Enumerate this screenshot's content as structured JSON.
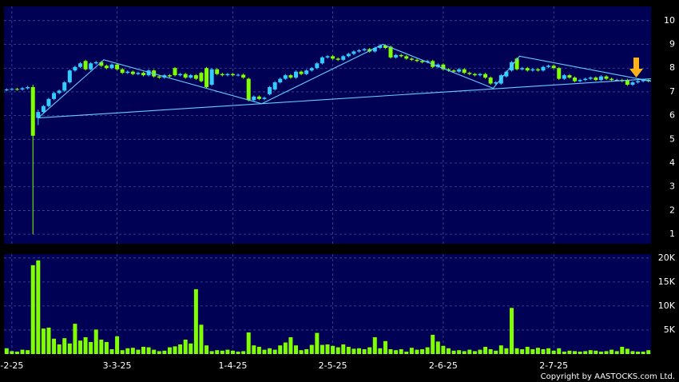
{
  "chart_data": [
    {
      "type": "candlestick",
      "categories": [
        null,
        "-2-25",
        null,
        null,
        null,
        null,
        null,
        null,
        null,
        null,
        null,
        null,
        null,
        null,
        null,
        null,
        null,
        null,
        null,
        null,
        null,
        "3-3-25",
        null,
        null,
        null,
        null,
        null,
        null,
        null,
        null,
        null,
        null,
        null,
        null,
        null,
        null,
        null,
        null,
        null,
        null,
        null,
        null,
        null,
        "1-4-25",
        null,
        null,
        null,
        null,
        null,
        null,
        null,
        null,
        null,
        null,
        null,
        null,
        null,
        null,
        null,
        null,
        null,
        null,
        "2-5-25",
        null,
        null,
        null,
        null,
        null,
        null,
        null,
        null,
        null,
        null,
        null,
        null,
        null,
        null,
        null,
        null,
        null,
        null,
        null,
        null,
        "2-6-25",
        null,
        null,
        null,
        null,
        null,
        null,
        null,
        null,
        null,
        null,
        null,
        null,
        null,
        null,
        null,
        null,
        null,
        null,
        null,
        null,
        "2-7-25",
        null,
        null,
        null,
        null,
        null,
        null,
        null,
        null,
        null,
        null,
        null,
        null,
        null,
        null,
        null,
        null,
        null,
        null
      ],
      "open": [
        7.08,
        7.1,
        7.12,
        7.1,
        7.15,
        7.2,
        5.9,
        6.15,
        6.4,
        6.7,
        6.95,
        7.05,
        7.4,
        7.9,
        8.05,
        8.3,
        7.95,
        8.2,
        8.25,
        8.1,
        8.0,
        8.15,
        7.95,
        7.8,
        7.85,
        7.75,
        7.8,
        7.7,
        7.9,
        7.65,
        7.6,
        7.7,
        8.0,
        7.7,
        7.75,
        7.6,
        7.7,
        7.8,
        8.0,
        7.3,
        7.95,
        7.75,
        7.7,
        7.75,
        7.7,
        7.72,
        7.55,
        6.65,
        6.8,
        6.7,
        6.9,
        7.1,
        7.4,
        7.55,
        7.7,
        7.6,
        7.85,
        7.75,
        7.9,
        8.0,
        8.2,
        8.45,
        8.5,
        8.4,
        8.35,
        8.5,
        8.6,
        8.7,
        8.75,
        8.8,
        8.7,
        8.85,
        8.95,
        8.9,
        8.45,
        8.55,
        8.5,
        8.4,
        8.35,
        8.3,
        8.25,
        8.3,
        8.05,
        8.15,
        7.95,
        7.9,
        7.85,
        7.95,
        7.8,
        7.75,
        7.7,
        7.75,
        7.6,
        7.35,
        7.35,
        7.65,
        7.9,
        8.4,
        7.95,
        8.0,
        7.9,
        7.95,
        7.9,
        8.05,
        8.1,
        8.0,
        7.55,
        7.7,
        7.6,
        7.45,
        7.5,
        7.55,
        7.6,
        7.5,
        7.65,
        7.55,
        7.5,
        7.5,
        7.5,
        7.3,
        7.4,
        7.45,
        7.5
      ],
      "high": [
        7.15,
        7.17,
        7.17,
        7.2,
        7.25,
        7.3,
        6.25,
        6.45,
        6.75,
        7.0,
        7.1,
        7.45,
        7.95,
        8.1,
        8.25,
        8.35,
        8.25,
        8.3,
        8.3,
        8.15,
        8.2,
        8.2,
        8.0,
        7.9,
        7.9,
        7.85,
        7.85,
        7.95,
        7.95,
        7.7,
        7.75,
        7.75,
        8.05,
        7.8,
        7.8,
        7.75,
        7.75,
        7.85,
        8.05,
        8.0,
        8.0,
        7.8,
        7.8,
        7.8,
        7.77,
        7.77,
        7.6,
        6.85,
        6.85,
        6.8,
        7.25,
        7.45,
        7.6,
        7.75,
        7.75,
        7.9,
        7.9,
        7.95,
        8.05,
        8.25,
        8.5,
        8.55,
        8.55,
        8.45,
        8.55,
        8.65,
        8.75,
        8.8,
        8.85,
        8.85,
        8.9,
        9.0,
        9.0,
        8.95,
        8.6,
        8.6,
        8.55,
        8.45,
        8.4,
        8.35,
        8.35,
        8.35,
        8.2,
        8.2,
        8.0,
        7.95,
        8.0,
        8.0,
        7.85,
        7.8,
        7.8,
        7.8,
        7.65,
        7.45,
        7.75,
        7.9,
        8.3,
        8.45,
        8.05,
        8.05,
        8.0,
        8.0,
        8.1,
        8.15,
        8.15,
        8.05,
        7.75,
        7.75,
        7.65,
        7.55,
        7.6,
        7.65,
        7.65,
        7.7,
        7.7,
        7.6,
        7.55,
        7.55,
        7.55,
        7.45,
        7.5,
        7.55,
        7.55
      ],
      "low": [
        7.03,
        7.05,
        7.05,
        7.05,
        7.1,
        1.0,
        5.6,
        6.1,
        6.35,
        6.65,
        6.9,
        7.0,
        7.35,
        7.85,
        8.0,
        7.9,
        7.9,
        8.15,
        8.05,
        7.95,
        7.95,
        7.9,
        7.75,
        7.75,
        7.7,
        7.7,
        7.65,
        7.65,
        7.6,
        7.55,
        7.55,
        7.6,
        7.65,
        7.65,
        7.55,
        7.55,
        7.5,
        7.4,
        7.15,
        7.25,
        7.7,
        7.65,
        7.65,
        7.65,
        7.65,
        7.55,
        6.6,
        6.6,
        6.65,
        6.65,
        6.85,
        7.05,
        7.35,
        7.5,
        7.55,
        7.55,
        7.7,
        7.7,
        7.85,
        7.95,
        8.15,
        8.4,
        8.35,
        8.3,
        8.3,
        8.45,
        8.55,
        8.65,
        8.7,
        8.65,
        8.65,
        8.8,
        8.8,
        8.4,
        8.4,
        8.45,
        8.35,
        8.3,
        8.25,
        8.2,
        8.2,
        8.0,
        8.0,
        7.9,
        7.85,
        7.8,
        7.8,
        7.75,
        7.7,
        7.65,
        7.65,
        7.55,
        7.3,
        7.3,
        7.3,
        7.6,
        7.85,
        7.9,
        7.9,
        7.85,
        7.85,
        7.85,
        7.85,
        8.0,
        7.95,
        7.5,
        7.5,
        7.55,
        7.4,
        7.4,
        7.45,
        7.5,
        7.45,
        7.45,
        7.5,
        7.45,
        7.45,
        7.4,
        7.25,
        7.25,
        7.35,
        7.4,
        7.4
      ],
      "close": [
        7.1,
        7.12,
        7.1,
        7.15,
        7.2,
        5.15,
        6.15,
        6.4,
        6.7,
        6.95,
        7.05,
        7.4,
        7.9,
        8.05,
        8.2,
        7.95,
        8.2,
        8.25,
        8.1,
        8.0,
        8.15,
        7.95,
        7.8,
        7.85,
        7.75,
        7.8,
        7.7,
        7.9,
        7.65,
        7.6,
        7.7,
        7.65,
        7.7,
        7.75,
        7.6,
        7.7,
        7.55,
        7.45,
        7.2,
        7.95,
        7.75,
        7.7,
        7.75,
        7.7,
        7.72,
        7.6,
        6.65,
        6.8,
        6.7,
        6.75,
        7.2,
        7.4,
        7.55,
        7.7,
        7.6,
        7.85,
        7.75,
        7.9,
        8.0,
        8.2,
        8.45,
        8.5,
        8.4,
        8.35,
        8.5,
        8.6,
        8.7,
        8.75,
        8.8,
        8.7,
        8.85,
        8.95,
        8.85,
        8.45,
        8.55,
        8.5,
        8.4,
        8.35,
        8.3,
        8.25,
        8.3,
        8.05,
        8.15,
        7.95,
        7.9,
        7.85,
        7.95,
        7.8,
        7.75,
        7.7,
        7.75,
        7.6,
        7.35,
        7.4,
        7.7,
        7.85,
        8.25,
        7.95,
        8.0,
        7.9,
        7.95,
        7.9,
        8.05,
        8.1,
        8.0,
        7.55,
        7.7,
        7.6,
        7.45,
        7.5,
        7.55,
        7.6,
        7.5,
        7.65,
        7.55,
        7.5,
        7.5,
        7.45,
        7.3,
        7.4,
        7.45,
        7.5,
        7.45
      ],
      "up_color": "#33ccff",
      "down_color": "#80ff00",
      "ylim": [
        0.6,
        10.6
      ],
      "yticks": [
        1,
        2,
        3,
        4,
        5,
        6,
        7,
        8,
        9,
        10
      ],
      "grid": true,
      "trendlines": [
        {
          "color": "#66ccff",
          "x": [
            6,
            18.5,
            48.5,
            71.5,
            92.5,
            97.5,
            122.5
          ],
          "y": [
            5.9,
            8.35,
            6.5,
            9.0,
            7.15,
            8.5,
            7.45
          ]
        },
        {
          "color": "#66ccff",
          "x": [
            6,
            122.5
          ],
          "y": [
            5.9,
            7.55
          ]
        }
      ]
    },
    {
      "type": "bar",
      "values": [
        1200,
        600,
        500,
        900,
        800,
        18500,
        19500,
        5300,
        5500,
        3200,
        2000,
        3300,
        2200,
        6300,
        2800,
        3500,
        2500,
        5100,
        3000,
        2500,
        1000,
        3700,
        800,
        1200,
        1300,
        900,
        1500,
        1400,
        900,
        600,
        700,
        1400,
        1600,
        2000,
        3000,
        2200,
        13500,
        6100,
        1800,
        600,
        800,
        700,
        900,
        700,
        500,
        600,
        4500,
        1800,
        1500,
        900,
        1200,
        900,
        1800,
        2400,
        3500,
        1800,
        800,
        1000,
        1900,
        4400,
        1900,
        2000,
        1700,
        1400,
        2000,
        1500,
        1100,
        1200,
        1000,
        1400,
        3500,
        1200,
        2700,
        1000,
        800,
        1000,
        500,
        1300,
        900,
        1000,
        1400,
        4000,
        2600,
        1700,
        1200,
        700,
        800,
        600,
        900,
        600,
        900,
        1500,
        1000,
        700,
        1800,
        1200,
        9600,
        1200,
        1000,
        1500,
        1000,
        1300,
        1000,
        1200,
        700,
        1200,
        500,
        700,
        600,
        500,
        600,
        800,
        700,
        500,
        600,
        900,
        600,
        1500,
        1100,
        600,
        500,
        500,
        800
      ],
      "color": "#80ff00",
      "ylim": [
        0,
        20800
      ],
      "yticks": [
        {
          "value": 5000,
          "label": "5K"
        },
        {
          "value": 10000,
          "label": "10K"
        },
        {
          "value": 15000,
          "label": "15K"
        },
        {
          "value": 20000,
          "label": "20K"
        }
      ],
      "grid": true,
      "footnote": "Copyright by AASTOCKS.com Ltd."
    }
  ]
}
